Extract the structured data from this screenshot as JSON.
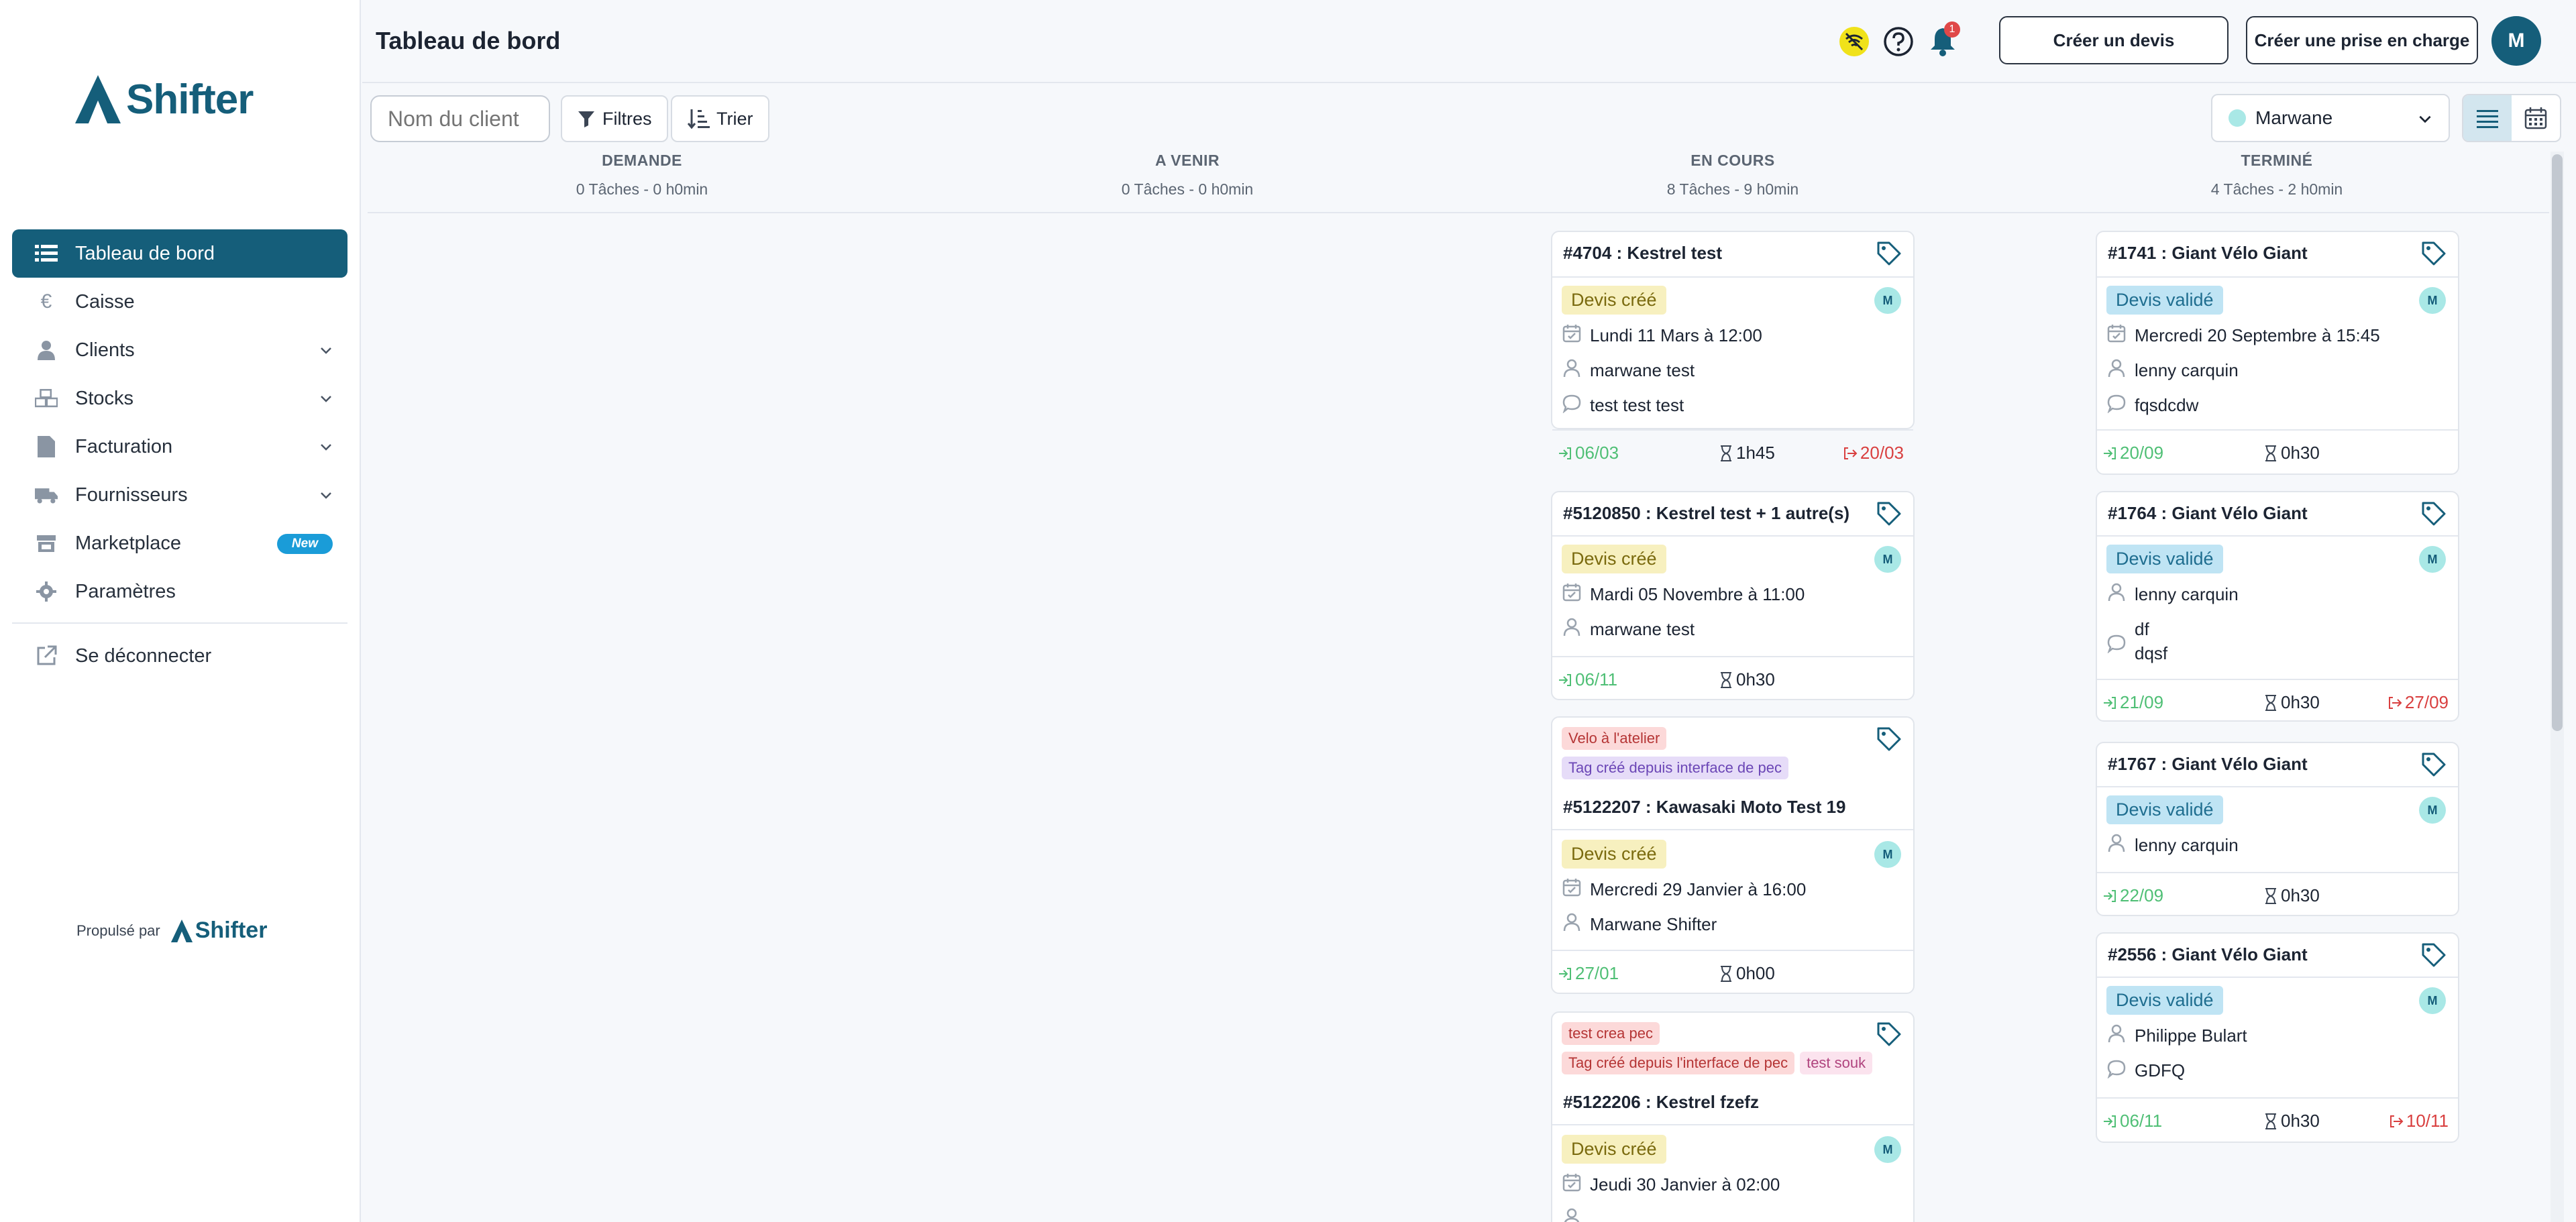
{
  "app": {
    "brand": "Shifter",
    "powered_by": "Propulsé par"
  },
  "sidebar": {
    "items": [
      {
        "label": "Tableau de bord",
        "icon": "list-icon",
        "active": true
      },
      {
        "label": "Caisse",
        "icon": "euro-icon"
      },
      {
        "label": "Clients",
        "icon": "user-icon",
        "expandable": true
      },
      {
        "label": "Stocks",
        "icon": "boxes-icon",
        "expandable": true
      },
      {
        "label": "Facturation",
        "icon": "file-icon",
        "expandable": true
      },
      {
        "label": "Fournisseurs",
        "icon": "truck-icon",
        "expandable": true
      },
      {
        "label": "Marketplace",
        "icon": "store-icon",
        "badge": "New"
      },
      {
        "label": "Paramètres",
        "icon": "gear-icon"
      }
    ],
    "logout": {
      "label": "Se déconnecter",
      "icon": "external-link-icon"
    }
  },
  "header": {
    "title": "Tableau de bord",
    "notification_count": "1",
    "create_quote_label": "Créer un devis",
    "create_pickup_label": "Créer une prise en charge",
    "avatar_initial": "M"
  },
  "toolbar": {
    "search_placeholder": "Nom du client",
    "filters_label": "Filtres",
    "sort_label": "Trier",
    "user_select": "Marwane"
  },
  "columns": [
    {
      "title": "DEMANDE",
      "summary": "0 Tâches - 0 h0min"
    },
    {
      "title": "A VENIR",
      "summary": "0 Tâches - 0 h0min"
    },
    {
      "title": "EN COURS",
      "summary": "8 Tâches - 9 h0min"
    },
    {
      "title": "TERMINÉ",
      "summary": "4 Tâches - 2 h0min"
    }
  ],
  "cards_en_cours": [
    {
      "title": "#4704 : Kestrel  test",
      "status": "Devis créé",
      "avatar": "M",
      "date": "Lundi 11 Mars à 12:00",
      "client": "marwane test",
      "comment": "test test test",
      "in": "06/03",
      "duration": "1h45",
      "out": "20/03"
    },
    {
      "title": "#5120850 : Kestrel  test + 1 autre(s)",
      "status": "Devis créé",
      "avatar": "M",
      "date": "Mardi 05 Novembre à 11:00",
      "client": "marwane test",
      "in": "06/11",
      "duration": "0h30"
    },
    {
      "tags": [
        "Velo à l'atelier",
        "Tag créé depuis interface de pec"
      ],
      "title": "#5122207 : Kawasaki  Moto Test 19",
      "status": "Devis créé",
      "avatar": "M",
      "date": "Mercredi 29 Janvier à 16:00",
      "client": "Marwane Shifter",
      "in": "27/01",
      "duration": "0h00"
    },
    {
      "tags": [
        "test crea pec",
        "Tag créé depuis l'interface de pec",
        "test souk"
      ],
      "title": "#5122206 : Kestrel  fzefz",
      "status": "Devis créé",
      "avatar": "M",
      "date": "Jeudi 30 Janvier à 02:00"
    }
  ],
  "cards_termine": [
    {
      "title": "#1741 : Giant  Vélo Giant",
      "status": "Devis validé",
      "avatar": "M",
      "date": "Mercredi 20 Septembre à 15:45",
      "client": "lenny carquin",
      "comment": "fqsdcdw",
      "in": "20/09",
      "duration": "0h30"
    },
    {
      "title": "#1764 : Giant  Vélo Giant",
      "status": "Devis validé",
      "avatar": "M",
      "client": "lenny carquin",
      "comment_line1": "df",
      "comment_line2": "dqsf",
      "in": "21/09",
      "duration": "0h30",
      "out": "27/09"
    },
    {
      "title": "#1767 : Giant  Vélo Giant",
      "status": "Devis validé",
      "avatar": "M",
      "client": "lenny carquin",
      "in": "22/09",
      "duration": "0h30"
    },
    {
      "title": "#2556 : Giant  Vélo Giant",
      "status": "Devis validé",
      "avatar": "M",
      "client": "Philippe Bulart",
      "comment": "GDFQ",
      "in": "06/11",
      "duration": "0h30",
      "out": "10/11"
    }
  ],
  "colors": {
    "primary": "#155e7a",
    "created_bg": "#f7f0bf",
    "valid_bg": "#bfe4f4",
    "in_color": "#4fbf75",
    "out_color": "#d93f3f"
  }
}
